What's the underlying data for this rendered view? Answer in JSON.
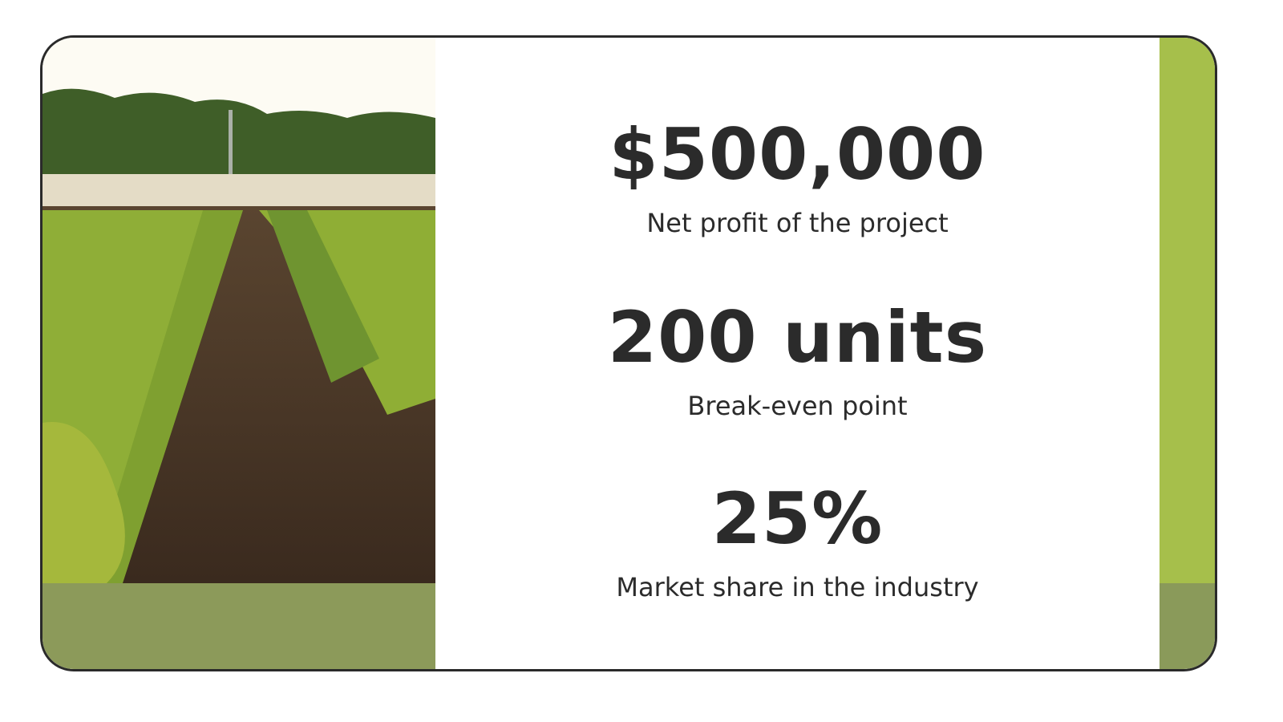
{
  "stats": [
    {
      "value": "$500,000",
      "label": "Net profit of the project"
    },
    {
      "value": "200 units",
      "label": "Break-even point"
    },
    {
      "value": "25%",
      "label": "Market share in the industry"
    }
  ],
  "colors": {
    "lime": "#a6bf4b",
    "olive": "#8c9a5a",
    "text": "#2b2b2b",
    "border": "#2a2a2a"
  },
  "image": "crop-field-photo"
}
